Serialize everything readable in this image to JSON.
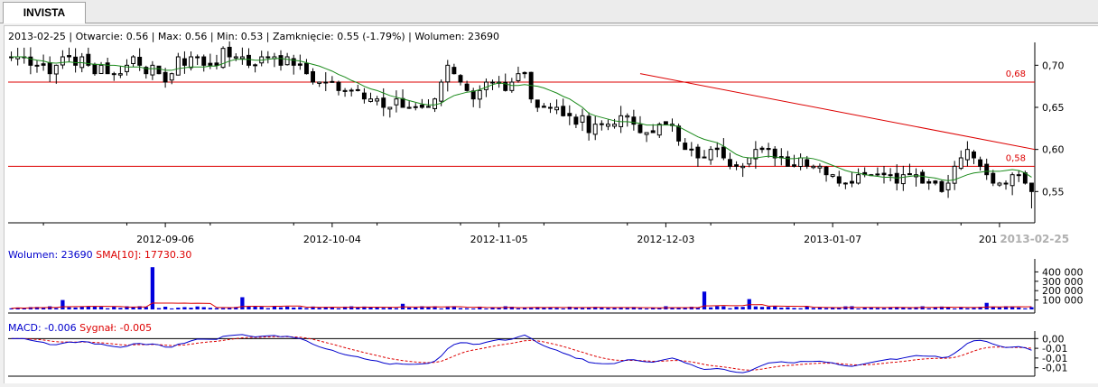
{
  "tab": {
    "label": "INVISTA"
  },
  "colors": {
    "candle": "#000000",
    "sma_price": "#1a8a1a",
    "volume": "#0000dd",
    "sma_volume": "#dd0000",
    "macd": "#0000cc",
    "signal": "#dd0000",
    "level": "#dd0000",
    "trend": "#dd0000",
    "grid": "#000000"
  },
  "price_info": {
    "date": "2013-02-25",
    "open_label": "Otwarcie: 0.56",
    "max_label": "Max: 0.56",
    "min_label": "Min: 0.53",
    "close_label": "Zamknięcie: 0.55 (-1.79%)",
    "volume_label": "Wolumen: 23690"
  },
  "volume_info": {
    "volume_label": "Wolumen: 23690",
    "sma_label": "SMA[10]: 17730.30"
  },
  "macd_info": {
    "macd_label": "MACD: -0.006",
    "signal_label": "Sygnał: -0.005"
  },
  "chart_data": [
    {
      "type": "candlestick",
      "panel": "price",
      "x_tick_labels": [
        "2012-09-06",
        "2012-10-04",
        "2012-11-05",
        "2012-12-03",
        "2013-01-07",
        "2013-02"
      ],
      "cursor_date_label": "2013-02-25",
      "y_tick_labels": [
        "0,70",
        "0,65",
        "0,60",
        "0,55"
      ],
      "ylim": [
        0.515,
        0.725
      ],
      "horizontal_levels": [
        {
          "label": "0,68",
          "value": 0.68
        },
        {
          "label": "0,58",
          "value": 0.58
        }
      ],
      "trend_line": {
        "from": [
          0.69,
          "2012-11-26"
        ],
        "to": [
          0.6,
          "2013-02-25"
        ]
      },
      "last": {
        "date": "2013-02-25",
        "open": 0.56,
        "high": 0.56,
        "low": 0.53,
        "close": 0.55
      },
      "price_anchors": [
        0.71,
        0.71,
        0.7,
        0.7,
        0.71,
        0.7,
        0.7,
        0.69,
        0.71,
        0.7,
        0.68,
        0.7,
        0.71,
        0.7,
        0.71,
        0.71,
        0.7,
        0.71,
        0.71,
        0.7,
        0.68,
        0.68,
        0.67,
        0.67,
        0.66,
        0.65,
        0.65,
        0.65,
        0.65,
        0.7,
        0.68,
        0.66,
        0.68,
        0.66,
        0.7,
        0.65,
        0.65,
        0.64,
        0.63,
        0.63,
        0.63,
        0.64,
        0.62,
        0.62,
        0.63,
        0.6,
        0.59,
        0.6,
        0.58,
        0.59,
        0.6,
        0.59,
        0.58,
        0.59,
        0.58,
        0.56,
        0.57,
        0.57,
        0.57,
        0.57,
        0.57,
        0.56,
        0.55,
        0.59,
        0.6,
        0.57,
        0.56,
        0.57,
        0.55
      ]
    },
    {
      "type": "bar",
      "panel": "volume",
      "y_tick_labels": [
        "400 000",
        "300 000",
        "200 000",
        "100 000"
      ],
      "ylim": [
        0,
        500000
      ],
      "series": [
        {
          "name": "Wolumen"
        },
        {
          "name": "SMA[10]"
        }
      ],
      "last": {
        "volume": 23690,
        "sma10": 17730.3
      },
      "spikes": [
        {
          "index": 8,
          "value": 100000
        },
        {
          "index": 22,
          "value": 450000
        },
        {
          "index": 36,
          "value": 130000
        },
        {
          "index": 61,
          "value": 60000
        },
        {
          "index": 108,
          "value": 190000
        },
        {
          "index": 115,
          "value": 110000
        },
        {
          "index": 152,
          "value": 70000
        }
      ],
      "baseline_volume": 25000
    },
    {
      "type": "line",
      "panel": "macd",
      "y_tick_labels": [
        "0,00",
        "-0,01",
        "-0,01",
        "-0,01"
      ],
      "ylim": [
        -0.017,
        0.002
      ],
      "series": [
        {
          "name": "MACD"
        },
        {
          "name": "Sygnał"
        }
      ],
      "last": {
        "macd": -0.006,
        "signal": -0.005
      }
    }
  ]
}
